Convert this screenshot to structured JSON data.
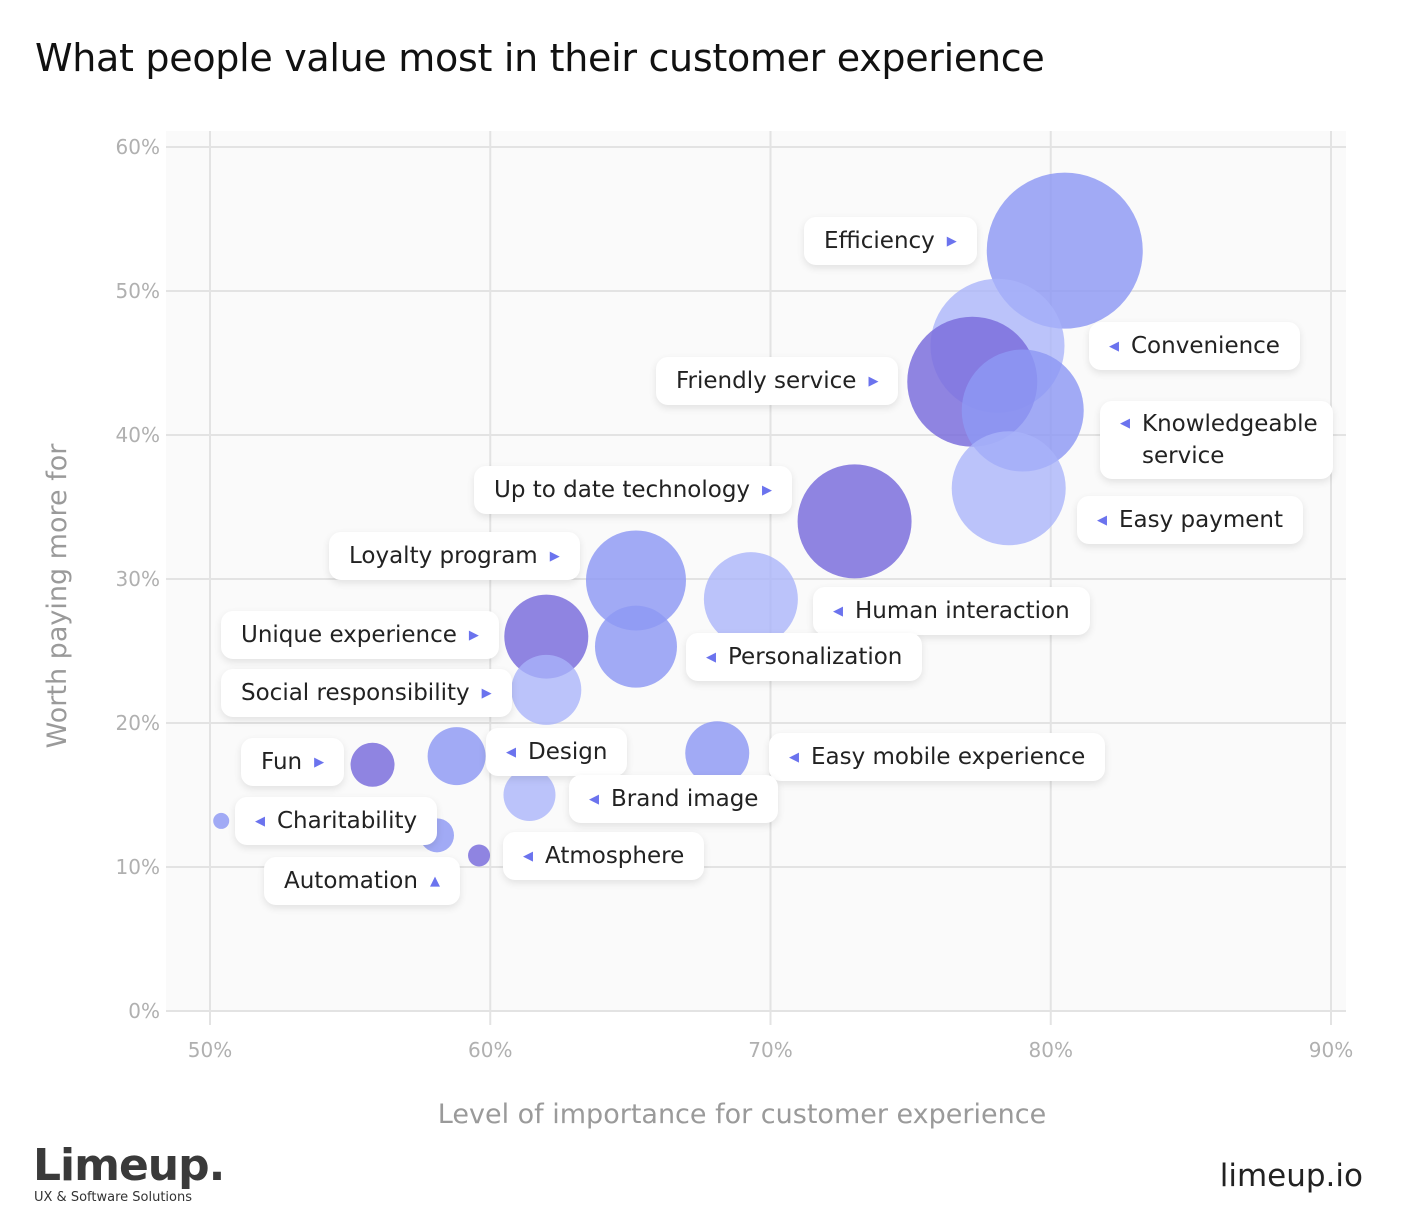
{
  "title": "What people value most in their customer experience",
  "chart_data": {
    "type": "scatter",
    "subtype": "bubble",
    "xlabel": "Level of importance for customer experience",
    "ylabel": "Worth paying more for",
    "xlim": [
      50,
      90
    ],
    "ylim": [
      0,
      60
    ],
    "x_ticks": [
      "50%",
      "60%",
      "70%",
      "80%",
      "90%"
    ],
    "y_ticks": [
      "0%",
      "10%",
      "20%",
      "30%",
      "40%",
      "50%",
      "60%"
    ],
    "grid": true,
    "colors": {
      "medium": "#8e98f4",
      "dark": "#7b6fdc",
      "light": "#a9b4fa"
    },
    "points": [
      {
        "label": "Efficiency",
        "x": 80.5,
        "y": 52.8,
        "size": 78,
        "shade": "medium",
        "arrow": "right"
      },
      {
        "label": "Convenience",
        "x": 78.1,
        "y": 46.2,
        "size": 67,
        "shade": "light",
        "arrow": "left"
      },
      {
        "label": "Friendly service",
        "x": 77.2,
        "y": 43.7,
        "size": 65,
        "shade": "dark",
        "arrow": "right"
      },
      {
        "label": "Knowledgeable service",
        "x": 79.0,
        "y": 41.7,
        "size": 61,
        "shade": "medium",
        "arrow": "left"
      },
      {
        "label": "Easy payment",
        "x": 78.5,
        "y": 36.3,
        "size": 57,
        "shade": "light",
        "arrow": "left"
      },
      {
        "label": "Up to date technology",
        "x": 73.0,
        "y": 34.0,
        "size": 57,
        "shade": "dark",
        "arrow": "right"
      },
      {
        "label": "Human interaction",
        "x": 69.3,
        "y": 28.6,
        "size": 47,
        "shade": "light",
        "arrow": "left"
      },
      {
        "label": "Loyalty program",
        "x": 65.2,
        "y": 29.9,
        "size": 50,
        "shade": "medium",
        "arrow": "right"
      },
      {
        "label": "Personalization",
        "x": 65.2,
        "y": 25.3,
        "size": 41,
        "shade": "medium",
        "arrow": "left"
      },
      {
        "label": "Unique experience",
        "x": 62.0,
        "y": 26.0,
        "size": 42,
        "shade": "dark",
        "arrow": "right"
      },
      {
        "label": "Social responsibility",
        "x": 62.0,
        "y": 22.3,
        "size": 35,
        "shade": "light",
        "arrow": "right"
      },
      {
        "label": "Design",
        "x": 58.8,
        "y": 17.7,
        "size": 29,
        "shade": "medium",
        "arrow": "left"
      },
      {
        "label": "Easy mobile experience",
        "x": 68.1,
        "y": 17.9,
        "size": 32,
        "shade": "medium",
        "arrow": "left"
      },
      {
        "label": "Fun",
        "x": 55.8,
        "y": 17.1,
        "size": 22,
        "shade": "dark",
        "arrow": "right"
      },
      {
        "label": "Brand image",
        "x": 61.4,
        "y": 15.0,
        "size": 26,
        "shade": "light",
        "arrow": "left"
      },
      {
        "label": "Charitability",
        "x": 50.4,
        "y": 13.2,
        "size": 8,
        "shade": "medium",
        "arrow": "left"
      },
      {
        "label": "Automation",
        "x": 58.1,
        "y": 12.2,
        "size": 17,
        "shade": "medium",
        "arrow": "up"
      },
      {
        "label": "Atmosphere",
        "x": 59.6,
        "y": 10.8,
        "size": 11,
        "shade": "dark",
        "arrow": "left"
      }
    ]
  },
  "footer": {
    "logo": "Limeup.",
    "tagline": "UX & Software Solutions",
    "site": "limeup.io"
  }
}
